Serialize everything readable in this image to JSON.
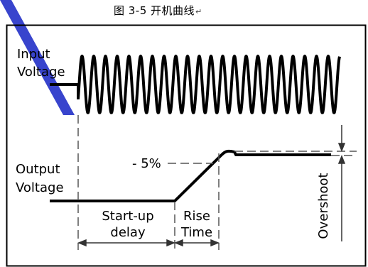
{
  "caption": {
    "text": "图 3-5 开机曲线",
    "return_mark": "↵"
  },
  "diagram": {
    "input_label_line1": "Input",
    "input_label_line2": "Voltage",
    "output_label_line1": "Output",
    "output_label_line2": "Voltage",
    "threshold_label": "- 5%",
    "startup_label_line1": "Start-up",
    "startup_label_line2": "delay",
    "rise_label_line1": "Rise",
    "rise_label_line2": "Time",
    "overshoot_label": "Overshoot"
  },
  "colors": {
    "ink": "#000000",
    "watermark": "#2230c8",
    "dashes": "#555555"
  }
}
